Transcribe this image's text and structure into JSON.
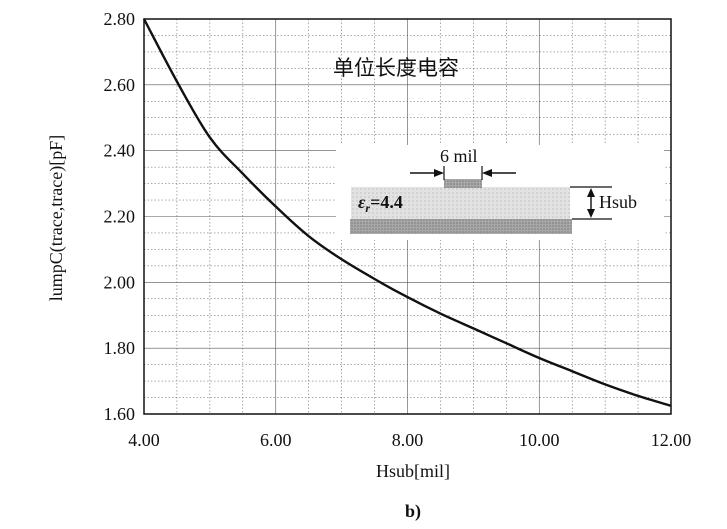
{
  "chart_data": {
    "type": "line",
    "xlabel": "Hsub[mil]",
    "ylabel": "lumpC(trace,trace)[pF]",
    "xlim": [
      4.0,
      12.0
    ],
    "ylim": [
      1.6,
      2.8
    ],
    "x_ticks": [
      "4.00",
      "6.00",
      "8.00",
      "10.00",
      "12.00"
    ],
    "y_ticks": [
      "1.60",
      "1.80",
      "2.00",
      "2.20",
      "2.40",
      "2.60",
      "2.80"
    ],
    "grid": true,
    "annotation": "单位长度电容",
    "subfigure_label": "b)",
    "series": [
      {
        "x": [
          4.0,
          4.5,
          5.0,
          5.5,
          6.0,
          6.5,
          7.0,
          7.5,
          8.0,
          8.5,
          9.0,
          9.5,
          10.0,
          10.5,
          11.0,
          11.5,
          12.0
        ],
        "y": [
          2.8,
          2.61,
          2.44,
          2.33,
          2.23,
          2.14,
          2.07,
          2.01,
          1.955,
          1.905,
          1.86,
          1.815,
          1.77,
          1.73,
          1.69,
          1.655,
          1.625
        ]
      }
    ]
  },
  "inset": {
    "width_label": "6 mil",
    "epsilon_symbol": "ε",
    "epsilon_subscript": "r",
    "epsilon_value": "=4.4",
    "height_label": "Hsub"
  }
}
